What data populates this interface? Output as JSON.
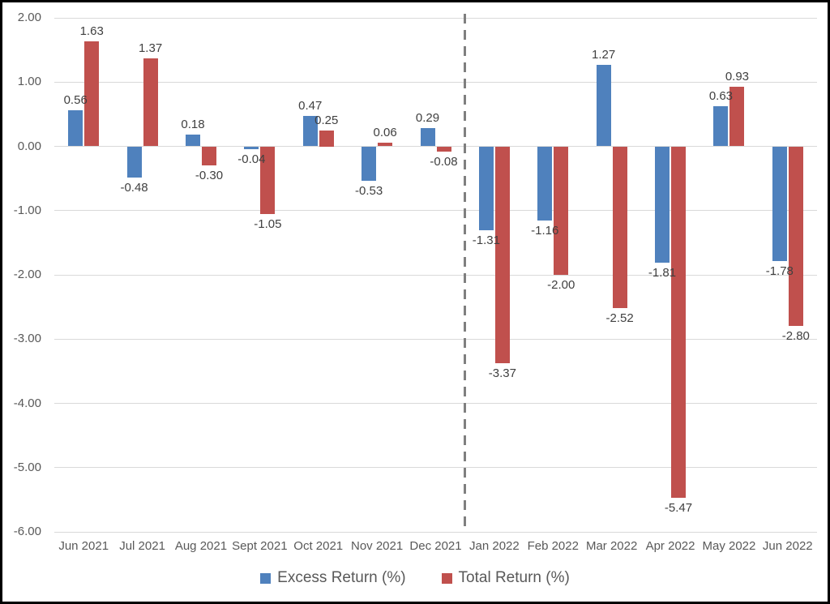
{
  "chart_data": {
    "type": "bar",
    "title": "",
    "xlabel": "",
    "ylabel": "",
    "categories": [
      "Jun 2021",
      "Jul 2021",
      "Aug 2021",
      "Sept 2021",
      "Oct 2021",
      "Nov 2021",
      "Dec 2021",
      "Jan 2022",
      "Feb 2022",
      "Mar 2022",
      "Apr 2022",
      "May 2022",
      "Jun 2022"
    ],
    "series": [
      {
        "name": "Excess Return (%)",
        "color": "#4F81BD",
        "values": [
          0.56,
          -0.48,
          0.18,
          -0.04,
          0.47,
          -0.53,
          0.29,
          -1.31,
          -1.16,
          1.27,
          -1.81,
          0.63,
          -1.78
        ]
      },
      {
        "name": "Total Return (%)",
        "color": "#C0504D",
        "values": [
          1.63,
          1.37,
          -0.3,
          -1.05,
          0.25,
          0.06,
          -0.08,
          -3.37,
          -2.0,
          -2.52,
          -5.47,
          0.93,
          -2.8
        ]
      }
    ],
    "ylim": [
      -6,
      2
    ],
    "yticks": [
      {
        "value": 2,
        "label": "2.00"
      },
      {
        "value": 1,
        "label": "1.00"
      },
      {
        "value": 0,
        "label": "0.00"
      },
      {
        "value": -1,
        "label": "-1.00"
      },
      {
        "value": -2,
        "label": "-2.00"
      },
      {
        "value": -3,
        "label": "-3.00"
      },
      {
        "value": -4,
        "label": "-4.00"
      },
      {
        "value": -5,
        "label": "-5.00"
      },
      {
        "value": -6,
        "label": "-6.00"
      }
    ],
    "grid": true,
    "legend_position": "bottom",
    "value_label_decimals": 2,
    "separator": {
      "after_category": "Dec 2021",
      "style": "dashed"
    }
  },
  "colors": {
    "excess_return": "#4F81BD",
    "total_return": "#C0504D",
    "gridline": "#D9D9D9",
    "axis_text": "#595959",
    "data_label_text": "#404040",
    "separator_line": "#7F7F7F",
    "frame_border": "#000000",
    "background": "#FFFFFF"
  }
}
